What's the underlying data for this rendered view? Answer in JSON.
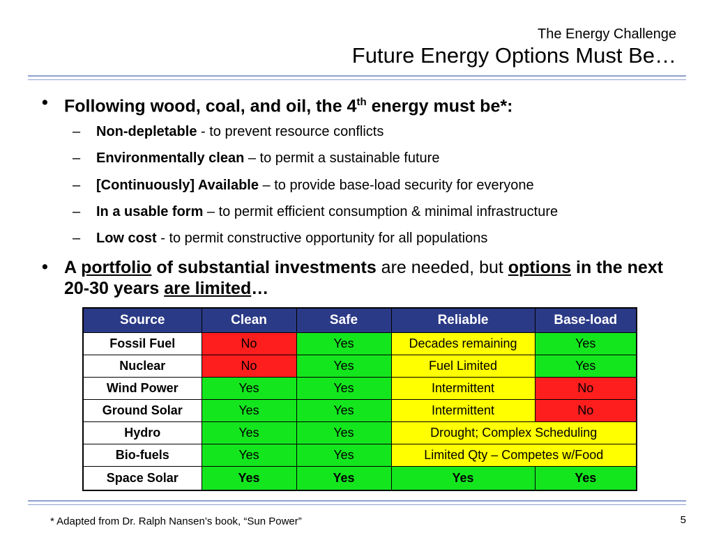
{
  "header": {
    "subtitle": "The Energy Challenge",
    "title": "Future Energy Options Must Be…"
  },
  "bullet1": {
    "text_a": "Following wood, coal, and oil, the 4",
    "sup": "th",
    "text_b": " energy must be*:"
  },
  "subitems": [
    {
      "bold": "Non-depletable",
      "rest": " - to prevent resource conflicts"
    },
    {
      "bold": "Environmentally clean",
      "rest": " – to permit a sustainable future"
    },
    {
      "bold": "[Continuously] Available",
      "rest": " – to provide base-load security for everyone"
    },
    {
      "bold": "In a usable form",
      "rest": " – to permit efficient consumption & minimal infrastructure"
    },
    {
      "bold": "Low cost",
      "rest": " - to permit constructive opportunity for all populations"
    }
  ],
  "bullet2": {
    "a": "A ",
    "b": "portfolio",
    "c": " of substantial investments",
    "d": " are needed, but ",
    "e": "options",
    "f": " in the next 20-30 years ",
    "g": "are limited",
    "h": "…"
  },
  "table": {
    "headers": [
      "Source",
      "Clean",
      "Safe",
      "Reliable",
      "Base-load"
    ],
    "rows": [
      {
        "source": "Fossil Fuel",
        "clean": "No",
        "safe": "Yes",
        "reliable": "Decades remaining",
        "baseload": "Yes"
      },
      {
        "source": "Nuclear",
        "clean": "No",
        "safe": "Yes",
        "reliable": "Fuel Limited",
        "baseload": "Yes"
      },
      {
        "source": "Wind Power",
        "clean": "Yes",
        "safe": "Yes",
        "reliable": "Intermittent",
        "baseload": "No"
      },
      {
        "source": "Ground Solar",
        "clean": "Yes",
        "safe": "Yes",
        "reliable": "Intermittent",
        "baseload": "No"
      },
      {
        "source": "Hydro",
        "clean": "Yes",
        "safe": "Yes",
        "reliable_merged": "Drought; Complex Scheduling"
      },
      {
        "source": "Bio-fuels",
        "clean": "Yes",
        "safe": "Yes",
        "reliable_merged": "Limited Qty – Competes w/Food"
      },
      {
        "source": "Space Solar",
        "clean": "Yes",
        "safe": "Yes",
        "reliable": "Yes",
        "baseload": "Yes"
      }
    ]
  },
  "colors": {
    "header_bg": "#2b3a86",
    "red": "#ff1e1e",
    "green": "#14e61e",
    "yellow": "#ffff00"
  },
  "footnote": "* Adapted from Dr. Ralph Nansen’s book, “Sun Power”",
  "page_number": "5"
}
